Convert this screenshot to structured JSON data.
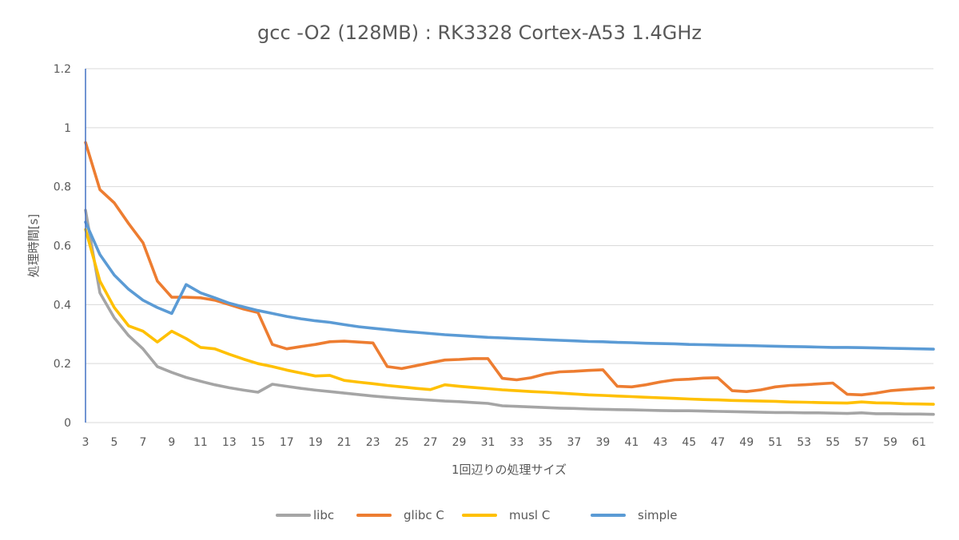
{
  "chart_data": {
    "type": "line",
    "title": "gcc -O2 (128MB) : RK3328 Cortex-A53 1.4GHz",
    "xlabel": "1回辺りの処理サイズ",
    "ylabel": "処理時間[s]",
    "ylim": [
      0,
      1.2
    ],
    "yticks": [
      "0",
      "0.2",
      "0.4",
      "0.6",
      "0.8",
      "1",
      "1.2"
    ],
    "xlim": [
      3,
      62
    ],
    "xticks": [
      "3",
      "5",
      "7",
      "9",
      "11",
      "13",
      "15",
      "17",
      "19",
      "21",
      "23",
      "25",
      "27",
      "29",
      "31",
      "33",
      "35",
      "37",
      "39",
      "41",
      "43",
      "45",
      "47",
      "49",
      "51",
      "53",
      "55",
      "57",
      "59",
      "61"
    ],
    "grid": true,
    "legend_position": "bottom",
    "x": [
      3,
      4,
      5,
      6,
      7,
      8,
      9,
      10,
      11,
      12,
      13,
      14,
      15,
      16,
      17,
      18,
      19,
      20,
      21,
      22,
      23,
      24,
      25,
      26,
      27,
      28,
      29,
      30,
      31,
      32,
      33,
      34,
      35,
      36,
      37,
      38,
      39,
      40,
      41,
      42,
      43,
      44,
      45,
      46,
      47,
      48,
      49,
      50,
      51,
      52,
      53,
      54,
      55,
      56,
      57,
      58,
      59,
      60,
      61,
      62
    ],
    "series": [
      {
        "name": "libc",
        "color": "#a5a5a5",
        "values": [
          0.72,
          0.44,
          0.355,
          0.295,
          0.25,
          0.19,
          0.17,
          0.153,
          0.14,
          0.128,
          0.118,
          0.11,
          0.103,
          0.13,
          0.123,
          0.116,
          0.11,
          0.105,
          0.1,
          0.095,
          0.09,
          0.086,
          0.082,
          0.079,
          0.076,
          0.073,
          0.071,
          0.068,
          0.065,
          0.057,
          0.055,
          0.053,
          0.051,
          0.049,
          0.048,
          0.046,
          0.045,
          0.044,
          0.043,
          0.042,
          0.041,
          0.04,
          0.04,
          0.039,
          0.038,
          0.037,
          0.036,
          0.035,
          0.034,
          0.034,
          0.033,
          0.033,
          0.032,
          0.031,
          0.033,
          0.03,
          0.03,
          0.029,
          0.029,
          0.028
        ]
      },
      {
        "name": "glibc C",
        "color": "#ed7d31",
        "values": [
          0.95,
          0.79,
          0.745,
          0.675,
          0.61,
          0.48,
          0.425,
          0.425,
          0.423,
          0.415,
          0.4,
          0.385,
          0.373,
          0.265,
          0.25,
          0.258,
          0.265,
          0.274,
          0.276,
          0.273,
          0.27,
          0.19,
          0.183,
          0.193,
          0.203,
          0.212,
          0.214,
          0.217,
          0.217,
          0.15,
          0.145,
          0.152,
          0.165,
          0.172,
          0.174,
          0.177,
          0.179,
          0.123,
          0.121,
          0.128,
          0.138,
          0.145,
          0.147,
          0.151,
          0.152,
          0.108,
          0.105,
          0.111,
          0.121,
          0.126,
          0.128,
          0.131,
          0.134,
          0.096,
          0.094,
          0.1,
          0.108,
          0.112,
          0.115,
          0.118
        ]
      },
      {
        "name": "musl C",
        "color": "#ffc000",
        "values": [
          0.655,
          0.48,
          0.39,
          0.328,
          0.31,
          0.273,
          0.31,
          0.285,
          0.255,
          0.25,
          0.232,
          0.215,
          0.2,
          0.19,
          0.178,
          0.168,
          0.158,
          0.16,
          0.143,
          0.137,
          0.132,
          0.126,
          0.121,
          0.116,
          0.112,
          0.128,
          0.123,
          0.119,
          0.115,
          0.111,
          0.108,
          0.105,
          0.103,
          0.1,
          0.097,
          0.094,
          0.092,
          0.09,
          0.088,
          0.086,
          0.084,
          0.082,
          0.08,
          0.078,
          0.077,
          0.075,
          0.074,
          0.073,
          0.072,
          0.07,
          0.069,
          0.068,
          0.067,
          0.066,
          0.07,
          0.067,
          0.066,
          0.064,
          0.063,
          0.062
        ]
      },
      {
        "name": "simple",
        "color": "#5b9bd5",
        "values": [
          0.68,
          0.57,
          0.5,
          0.452,
          0.415,
          0.39,
          0.37,
          0.468,
          0.44,
          0.423,
          0.405,
          0.392,
          0.38,
          0.37,
          0.36,
          0.352,
          0.345,
          0.34,
          0.332,
          0.325,
          0.32,
          0.315,
          0.31,
          0.306,
          0.302,
          0.298,
          0.295,
          0.292,
          0.289,
          0.287,
          0.285,
          0.283,
          0.281,
          0.279,
          0.277,
          0.275,
          0.274,
          0.272,
          0.271,
          0.269,
          0.268,
          0.267,
          0.265,
          0.264,
          0.263,
          0.262,
          0.261,
          0.26,
          0.259,
          0.258,
          0.257,
          0.256,
          0.255,
          0.255,
          0.254,
          0.253,
          0.252,
          0.251,
          0.25,
          0.249
        ]
      }
    ],
    "axis_color": "#4472c4"
  }
}
